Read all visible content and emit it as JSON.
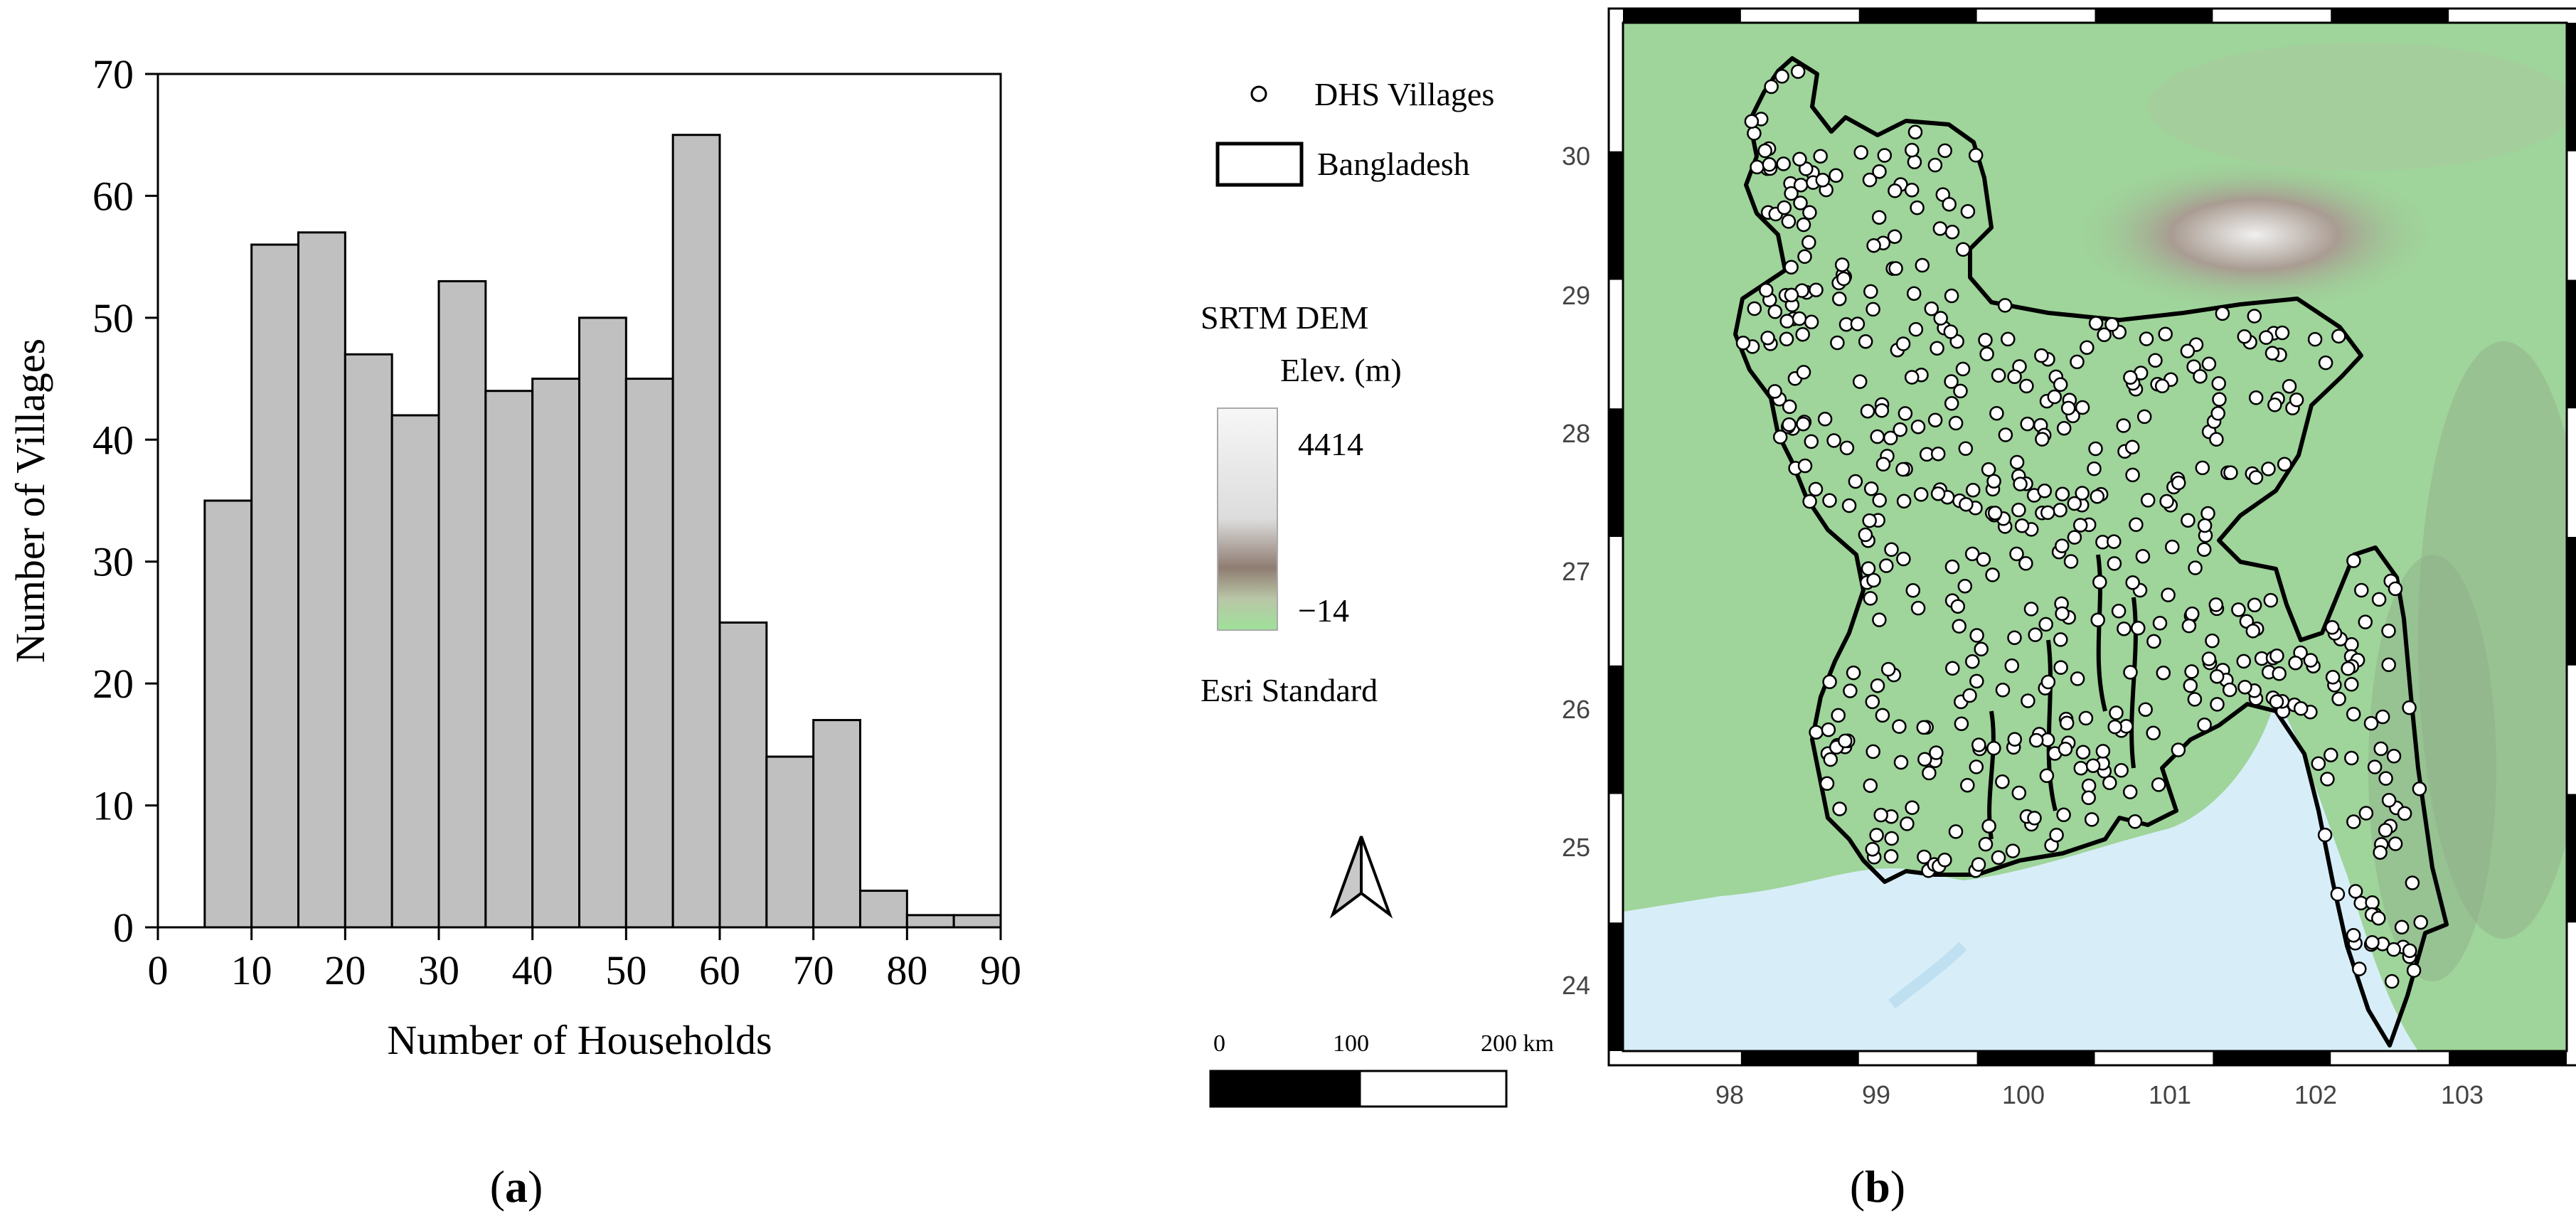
{
  "panel_a": {
    "label_open": "(",
    "label_letter": "a",
    "label_close": ")"
  },
  "panel_b": {
    "label_open": "(",
    "label_letter": "b",
    "label_close": ")",
    "legend": {
      "villages": "DHS Villages",
      "country": "Bangladesh",
      "dem_title": "SRTM DEM",
      "elev_label": "Elev. (m)",
      "elev_max": "4414",
      "elev_min": "−14",
      "basemap": "Esri Standard"
    },
    "scalebar": {
      "labels": [
        "0",
        "100",
        "200 km"
      ]
    },
    "map_axes": {
      "x_ticks": [
        "98",
        "99",
        "100",
        "101",
        "102",
        "103"
      ],
      "y_ticks": [
        "30",
        "29",
        "28",
        "27",
        "26",
        "25",
        "24"
      ]
    },
    "colors": {
      "land": "#9fd49a",
      "water": "#d7eef8",
      "border": "#000000",
      "village_fill": "#ffffff"
    }
  },
  "chart_data": {
    "type": "bar",
    "title": "",
    "xlabel": "Number of Households",
    "ylabel": "Number of Villages",
    "bin_edges": [
      5,
      10,
      15,
      20,
      25,
      30,
      35,
      40,
      45,
      50,
      55,
      60,
      65,
      70,
      75,
      80,
      85,
      90
    ],
    "values": [
      35,
      56,
      57,
      47,
      42,
      53,
      44,
      45,
      50,
      45,
      65,
      25,
      14,
      17,
      3,
      1,
      1
    ],
    "xlim": [
      0,
      90
    ],
    "ylim": [
      0,
      70
    ],
    "x_ticks": [
      0,
      10,
      20,
      30,
      40,
      50,
      60,
      70,
      80,
      90
    ],
    "y_ticks": [
      0,
      10,
      20,
      30,
      40,
      50,
      60,
      70
    ],
    "bar_color": "#c0c0c0",
    "grid": false
  }
}
